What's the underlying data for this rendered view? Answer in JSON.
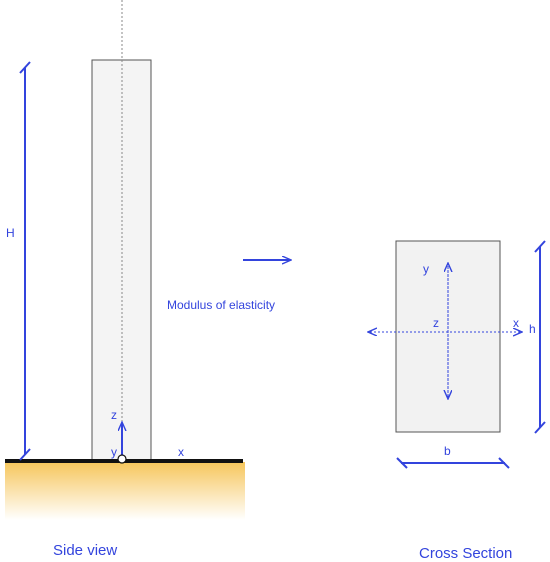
{
  "colors": {
    "accent": "#3344dd",
    "column_fill": "#f2f2f2",
    "column_stroke": "#555555",
    "ground_line": "#111111",
    "soil_top": "#f6c65c",
    "soil_bottom": "#ffffff"
  },
  "side_view": {
    "caption": "Side view",
    "height_label": "H",
    "axis_z": "z",
    "axis_y": "y",
    "axis_x": "x"
  },
  "material": {
    "label": "Modulus of elasticity"
  },
  "cross_section": {
    "caption": "Cross Section",
    "axis_y": "y",
    "axis_z": "z",
    "axis_x": "x",
    "height_label": "h",
    "width_label": "b"
  }
}
